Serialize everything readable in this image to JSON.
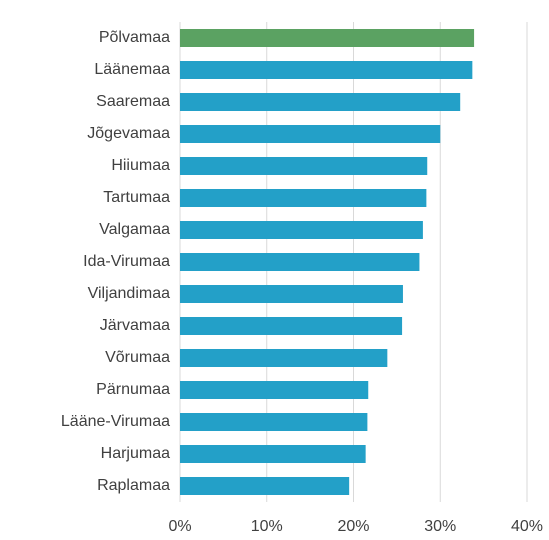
{
  "chart_data": {
    "type": "hbar",
    "categories": [
      "Põlvamaa",
      "Läänemaa",
      "Saaremaa",
      "Jõgevamaa",
      "Hiiumaa",
      "Tartumaa",
      "Valgamaa",
      "Ida-Virumaa",
      "Viljandimaa",
      "Järvamaa",
      "Võrumaa",
      "Pärnumaa",
      "Lääne-Virumaa",
      "Harjumaa",
      "Raplamaa"
    ],
    "values": [
      33.9,
      33.7,
      32.3,
      30.0,
      28.5,
      28.4,
      28.0,
      27.6,
      25.7,
      25.6,
      23.9,
      21.7,
      21.6,
      21.4,
      19.5
    ],
    "colors": [
      "#5ba262",
      "#23a0c8",
      "#23a0c8",
      "#23a0c8",
      "#23a0c8",
      "#23a0c8",
      "#23a0c8",
      "#23a0c8",
      "#23a0c8",
      "#23a0c8",
      "#23a0c8",
      "#23a0c8",
      "#23a0c8",
      "#23a0c8",
      "#23a0c8"
    ],
    "xlim": [
      0,
      40
    ],
    "xticks": [
      {
        "value": 0,
        "label": "0%"
      },
      {
        "value": 10,
        "label": "10%"
      },
      {
        "value": 20,
        "label": "20%"
      },
      {
        "value": 30,
        "label": "30%"
      },
      {
        "value": 40,
        "label": "40%"
      }
    ],
    "grid": true
  }
}
